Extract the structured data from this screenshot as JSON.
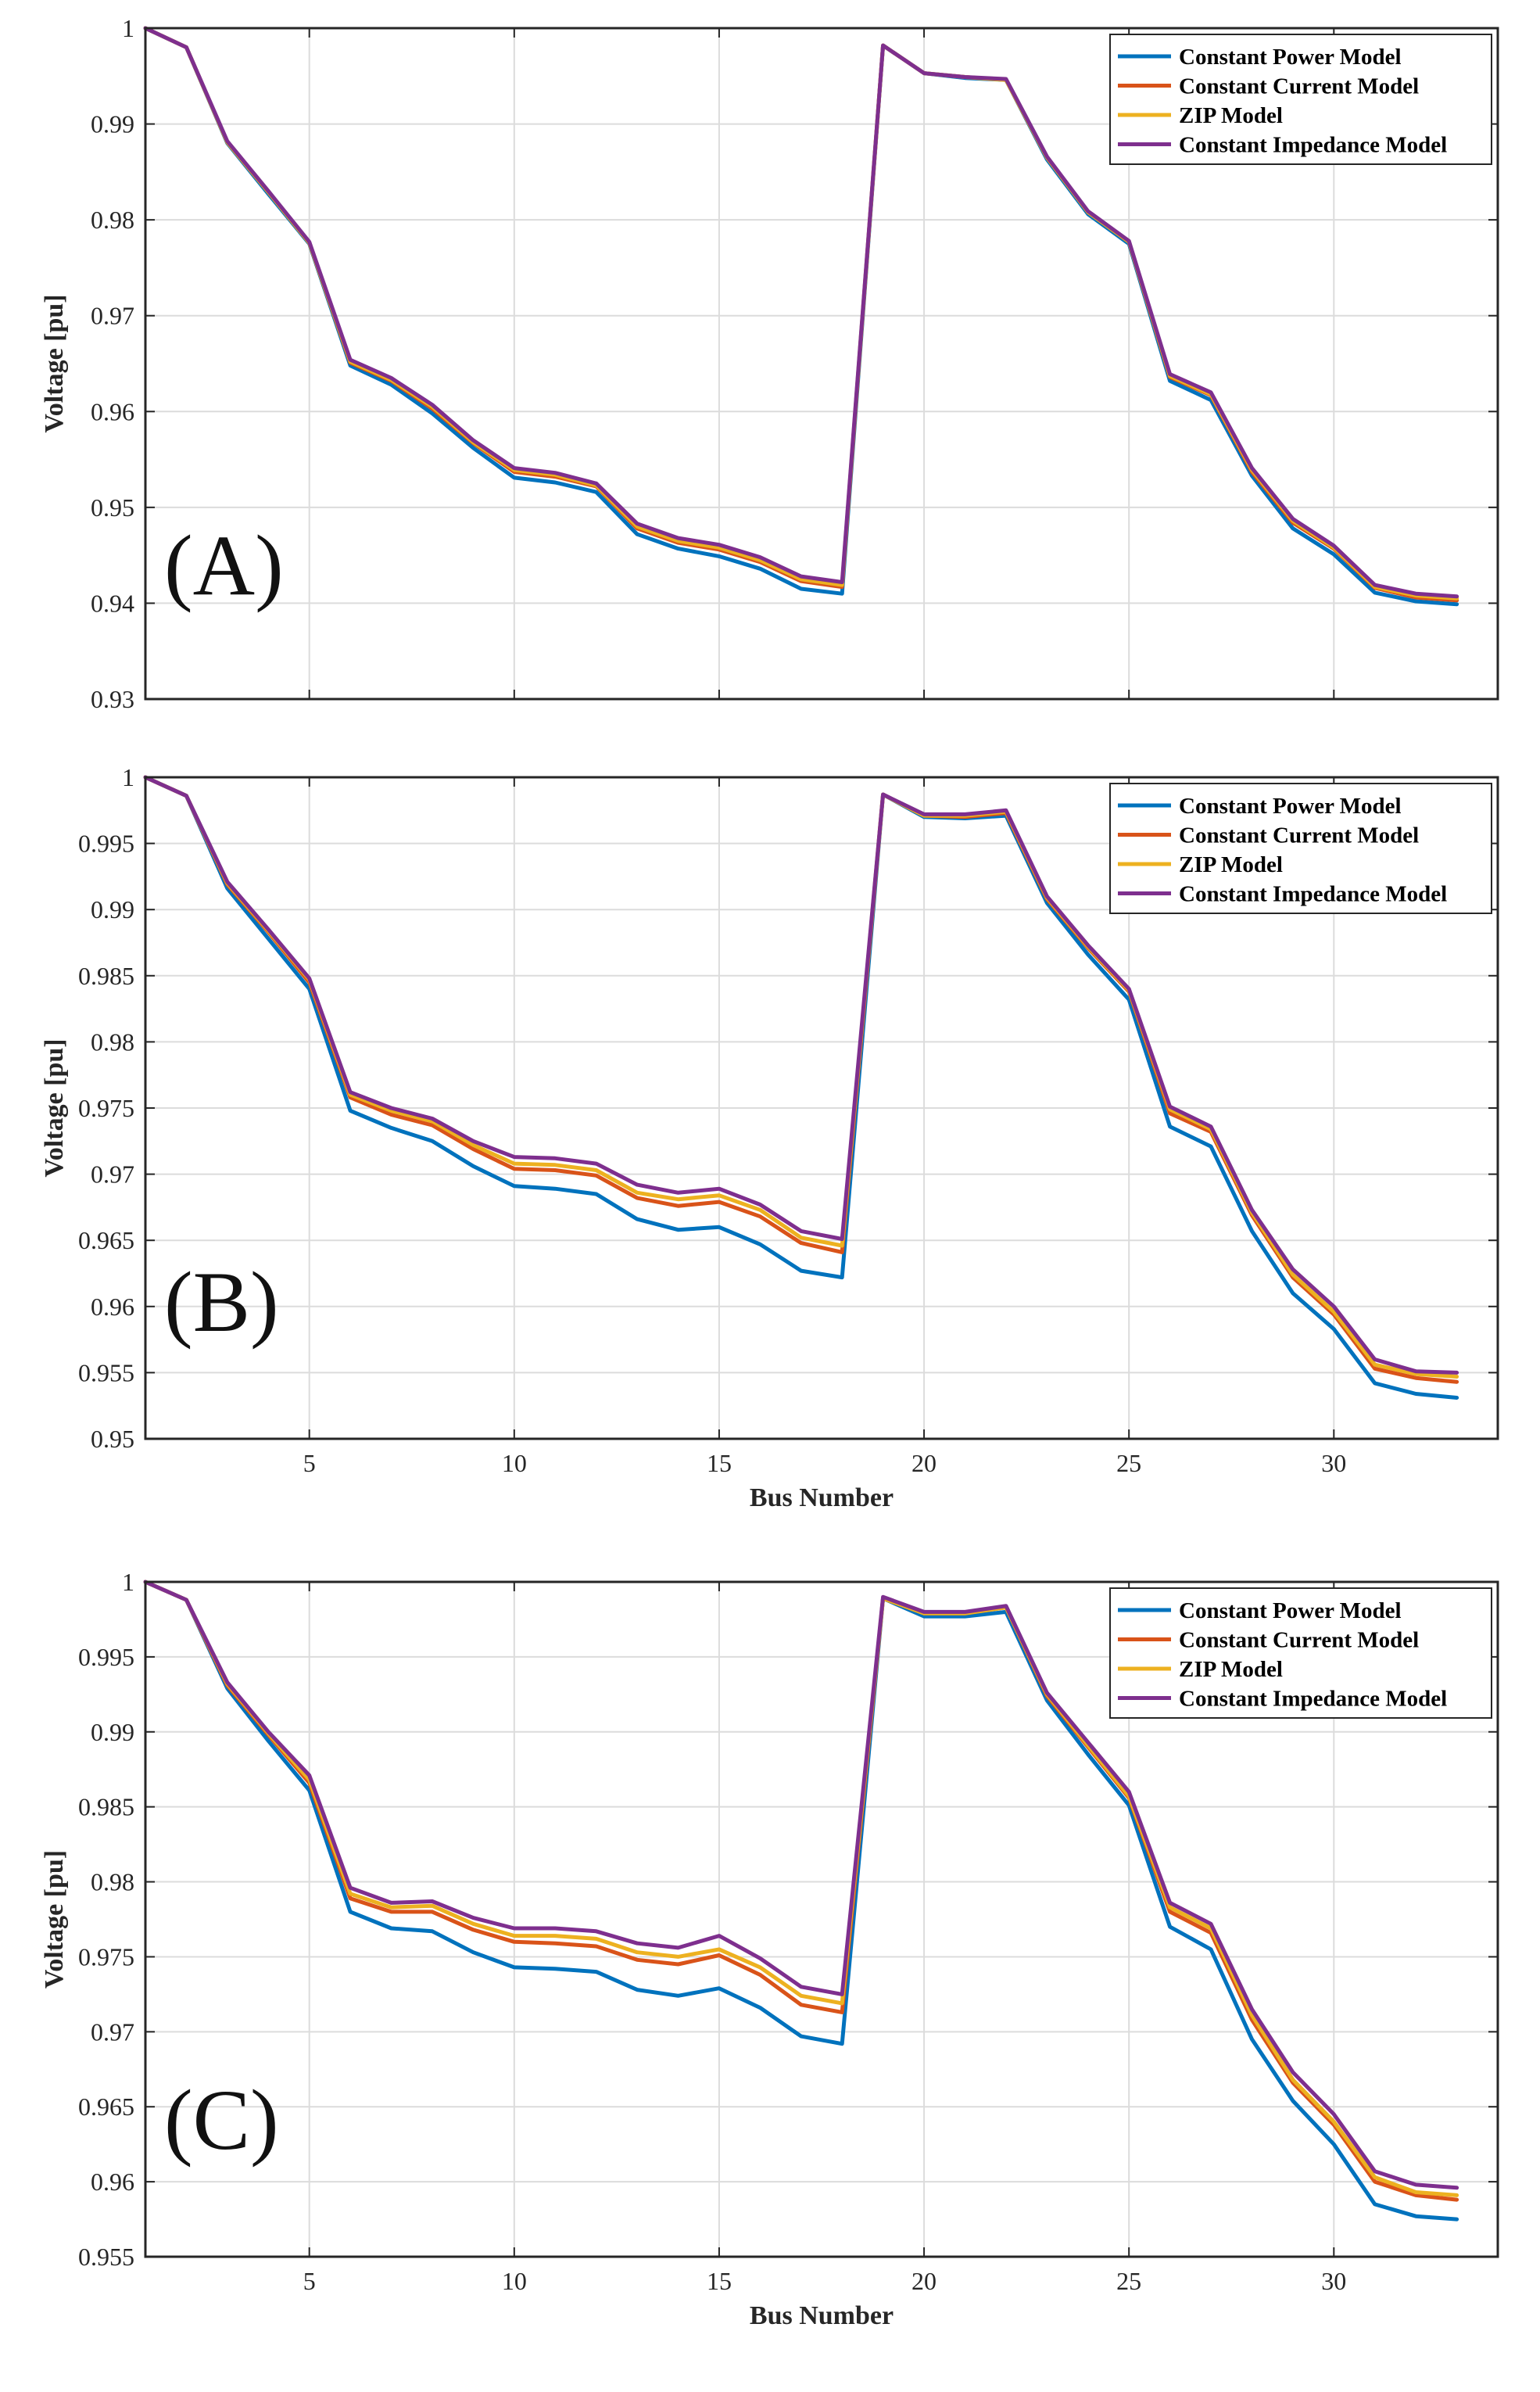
{
  "colors": {
    "Constant Power Model": "#0072BD",
    "Constant Current Model": "#D95319",
    "ZIP Model": "#EDB120",
    "Constant Impedance Model": "#7E2F8E",
    "grid": "#dcdcdc",
    "axis": "#262626"
  },
  "chart_data": [
    {
      "type": "line",
      "panel_label": "(A)",
      "xlabel": "",
      "ylabel": "Voltage [pu]",
      "xlim": [
        1,
        34
      ],
      "ylim": [
        0.93,
        1.0
      ],
      "xticks": [
        5,
        10,
        15,
        20,
        25,
        30
      ],
      "xtick_labels": [],
      "yticks": [
        0.93,
        0.94,
        0.95,
        0.96,
        0.97,
        0.98,
        0.99,
        1.0
      ],
      "ytick_labels": [
        "0.93",
        "0.94",
        "0.95",
        "0.96",
        "0.97",
        "0.98",
        "0.99",
        "1"
      ],
      "grid": true,
      "legend": "top-right",
      "x": [
        1,
        2,
        3,
        4,
        5,
        6,
        7,
        8,
        9,
        10,
        11,
        12,
        13,
        14,
        15,
        16,
        17,
        18,
        19,
        20,
        21,
        22,
        23,
        24,
        25,
        26,
        27,
        28,
        29,
        30,
        31,
        32,
        33
      ],
      "series": [
        {
          "name": "Constant Power Model",
          "values": [
            1.0,
            0.998,
            0.988,
            0.9827,
            0.9775,
            0.9648,
            0.9628,
            0.9598,
            0.9562,
            0.9531,
            0.9526,
            0.9516,
            0.9472,
            0.9457,
            0.9449,
            0.9436,
            0.9415,
            0.941,
            0.9982,
            0.9953,
            0.9948,
            0.9946,
            0.9863,
            0.9806,
            0.9775,
            0.9632,
            0.9612,
            0.9533,
            0.9478,
            0.9451,
            0.9411,
            0.9402,
            0.9399
          ]
        },
        {
          "name": "Constant Current Model",
          "values": [
            1.0,
            0.998,
            0.9881,
            0.9829,
            0.9776,
            0.9651,
            0.9632,
            0.9603,
            0.9567,
            0.9537,
            0.9532,
            0.9522,
            0.9478,
            0.9463,
            0.9456,
            0.9443,
            0.9423,
            0.9417,
            0.9982,
            0.9953,
            0.9949,
            0.9946,
            0.9865,
            0.9808,
            0.9777,
            0.9636,
            0.9617,
            0.9537,
            0.9484,
            0.9457,
            0.9416,
            0.9406,
            0.9403
          ]
        },
        {
          "name": "ZIP Model",
          "values": [
            1.0,
            0.998,
            0.9881,
            0.9829,
            0.9776,
            0.9652,
            0.9633,
            0.9605,
            0.9568,
            0.9539,
            0.9534,
            0.9523,
            0.948,
            0.9465,
            0.9458,
            0.9445,
            0.9425,
            0.9419,
            0.9982,
            0.9953,
            0.9949,
            0.9946,
            0.9865,
            0.9808,
            0.9777,
            0.9637,
            0.9618,
            0.9539,
            0.9486,
            0.9458,
            0.9417,
            0.9408,
            0.9405
          ]
        },
        {
          "name": "Constant Impedance Model",
          "values": [
            1.0,
            0.998,
            0.9882,
            0.983,
            0.9777,
            0.9654,
            0.9635,
            0.9607,
            0.957,
            0.9541,
            0.9536,
            0.9525,
            0.9483,
            0.9468,
            0.9461,
            0.9448,
            0.9428,
            0.9422,
            0.9982,
            0.9953,
            0.9949,
            0.9947,
            0.9866,
            0.9809,
            0.9778,
            0.9639,
            0.962,
            0.9541,
            0.9488,
            0.946,
            0.9419,
            0.941,
            0.9407
          ]
        }
      ]
    },
    {
      "type": "line",
      "panel_label": "(B)",
      "xlabel": "Bus Number",
      "ylabel": "Voltage [pu]",
      "xlim": [
        1,
        34
      ],
      "ylim": [
        0.95,
        1.0
      ],
      "xticks": [
        5,
        10,
        15,
        20,
        25,
        30
      ],
      "xtick_labels": [
        "5",
        "10",
        "15",
        "20",
        "25",
        "30"
      ],
      "yticks": [
        0.95,
        0.955,
        0.96,
        0.965,
        0.97,
        0.975,
        0.98,
        0.985,
        0.99,
        0.995,
        1.0
      ],
      "ytick_labels": [
        "0.95",
        "0.955",
        "0.96",
        "0.965",
        "0.97",
        "0.975",
        "0.98",
        "0.985",
        "0.99",
        "0.995",
        "1"
      ],
      "grid": true,
      "legend": "top-right",
      "x": [
        1,
        2,
        3,
        4,
        5,
        6,
        7,
        8,
        9,
        10,
        11,
        12,
        13,
        14,
        15,
        16,
        17,
        18,
        19,
        20,
        21,
        22,
        23,
        24,
        25,
        26,
        27,
        28,
        29,
        30,
        31,
        32,
        33
      ],
      "series": [
        {
          "name": "Constant Power Model",
          "values": [
            1.0,
            0.9986,
            0.9916,
            0.9878,
            0.984,
            0.9748,
            0.9735,
            0.9725,
            0.9706,
            0.9691,
            0.9689,
            0.9685,
            0.9666,
            0.9658,
            0.966,
            0.9647,
            0.9627,
            0.9622,
            0.9987,
            0.997,
            0.9969,
            0.9971,
            0.9905,
            0.9866,
            0.9832,
            0.9736,
            0.9721,
            0.9657,
            0.961,
            0.9583,
            0.9542,
            0.9534,
            0.9531
          ]
        },
        {
          "name": "Constant Current Model",
          "values": [
            1.0,
            0.9986,
            0.9919,
            0.9883,
            0.9845,
            0.9758,
            0.9745,
            0.9737,
            0.9719,
            0.9704,
            0.9703,
            0.9699,
            0.9682,
            0.9676,
            0.9679,
            0.9668,
            0.9648,
            0.9641,
            0.9987,
            0.9971,
            0.997,
            0.9973,
            0.9908,
            0.9871,
            0.9838,
            0.9746,
            0.9732,
            0.9669,
            0.9622,
            0.9594,
            0.9553,
            0.9546,
            0.9543
          ]
        },
        {
          "name": "ZIP Model",
          "values": [
            1.0,
            0.9986,
            0.992,
            0.9884,
            0.9847,
            0.976,
            0.9748,
            0.974,
            0.9722,
            0.9708,
            0.9707,
            0.9703,
            0.9686,
            0.9681,
            0.9684,
            0.9673,
            0.9652,
            0.9646,
            0.9987,
            0.9971,
            0.9971,
            0.9974,
            0.9909,
            0.9872,
            0.9839,
            0.9749,
            0.9734,
            0.9671,
            0.9624,
            0.9596,
            0.9556,
            0.9549,
            0.9547
          ]
        },
        {
          "name": "Constant Impedance Model",
          "values": [
            1.0,
            0.9986,
            0.9921,
            0.9885,
            0.9848,
            0.9762,
            0.975,
            0.9742,
            0.9725,
            0.9713,
            0.9712,
            0.9708,
            0.9692,
            0.9686,
            0.9689,
            0.9677,
            0.9657,
            0.9651,
            0.9987,
            0.9972,
            0.9972,
            0.9975,
            0.991,
            0.9873,
            0.984,
            0.9751,
            0.9736,
            0.9673,
            0.9628,
            0.96,
            0.956,
            0.9551,
            0.955
          ]
        }
      ]
    },
    {
      "type": "line",
      "panel_label": "(C)",
      "xlabel": "Bus Number",
      "ylabel": "Voltage [pu]",
      "xlim": [
        1,
        34
      ],
      "ylim": [
        0.955,
        1.0
      ],
      "xticks": [
        5,
        10,
        15,
        20,
        25,
        30
      ],
      "xtick_labels": [
        "5",
        "10",
        "15",
        "20",
        "25",
        "30"
      ],
      "yticks": [
        0.955,
        0.96,
        0.965,
        0.97,
        0.975,
        0.98,
        0.985,
        0.99,
        0.995,
        1.0
      ],
      "ytick_labels": [
        "0.955",
        "0.96",
        "0.965",
        "0.97",
        "0.975",
        "0.98",
        "0.985",
        "0.99",
        "0.995",
        "1"
      ],
      "grid": true,
      "legend": "top-right",
      "x": [
        1,
        2,
        3,
        4,
        5,
        6,
        7,
        8,
        9,
        10,
        11,
        12,
        13,
        14,
        15,
        16,
        17,
        18,
        19,
        20,
        21,
        22,
        23,
        24,
        25,
        26,
        27,
        28,
        29,
        30,
        31,
        32,
        33
      ],
      "series": [
        {
          "name": "Constant Power Model",
          "values": [
            1.0,
            0.9988,
            0.9929,
            0.9894,
            0.9861,
            0.978,
            0.9769,
            0.9767,
            0.9753,
            0.9743,
            0.9742,
            0.974,
            0.9728,
            0.9724,
            0.9729,
            0.9716,
            0.9697,
            0.9692,
            0.9989,
            0.9977,
            0.9977,
            0.998,
            0.9921,
            0.9885,
            0.9851,
            0.977,
            0.9755,
            0.9695,
            0.9654,
            0.9625,
            0.9585,
            0.9577,
            0.9575
          ]
        },
        {
          "name": "Constant Current Model",
          "values": [
            1.0,
            0.9988,
            0.9931,
            0.9898,
            0.9866,
            0.9789,
            0.978,
            0.978,
            0.9768,
            0.976,
            0.9759,
            0.9757,
            0.9748,
            0.9745,
            0.9751,
            0.9738,
            0.9718,
            0.9713,
            0.9989,
            0.9979,
            0.9979,
            0.9983,
            0.9924,
            0.989,
            0.9856,
            0.978,
            0.9766,
            0.9708,
            0.9666,
            0.9638,
            0.96,
            0.9591,
            0.9588
          ]
        },
        {
          "name": "ZIP Model",
          "values": [
            1.0,
            0.9988,
            0.9932,
            0.9899,
            0.9868,
            0.9792,
            0.9783,
            0.9784,
            0.9772,
            0.9764,
            0.9764,
            0.9762,
            0.9753,
            0.975,
            0.9755,
            0.9743,
            0.9724,
            0.9719,
            0.9989,
            0.9979,
            0.9979,
            0.9983,
            0.9925,
            0.9891,
            0.9857,
            0.9783,
            0.9769,
            0.9711,
            0.9668,
            0.964,
            0.9603,
            0.9593,
            0.9591
          ]
        },
        {
          "name": "Constant Impedance Model",
          "values": [
            1.0,
            0.9988,
            0.9933,
            0.99,
            0.9871,
            0.9796,
            0.9786,
            0.9787,
            0.9776,
            0.9769,
            0.9769,
            0.9767,
            0.9759,
            0.9756,
            0.9764,
            0.9749,
            0.973,
            0.9725,
            0.999,
            0.998,
            0.998,
            0.9984,
            0.9926,
            0.9893,
            0.986,
            0.9786,
            0.9772,
            0.9715,
            0.9673,
            0.9645,
            0.9607,
            0.9598,
            0.9596
          ]
        }
      ]
    }
  ]
}
